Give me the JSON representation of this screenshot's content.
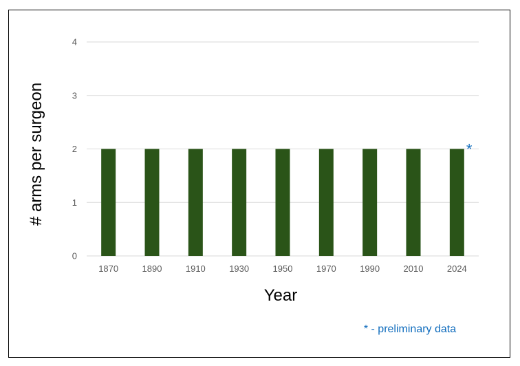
{
  "chart_data": {
    "type": "bar",
    "title": "",
    "xlabel": "Year",
    "ylabel": "# arms per surgeon",
    "categories": [
      "1870",
      "1890",
      "1910",
      "1930",
      "1950",
      "1970",
      "1990",
      "2010",
      "2024"
    ],
    "values": [
      2,
      2,
      2,
      2,
      2,
      2,
      2,
      2,
      2
    ],
    "ylim": [
      0,
      4
    ],
    "yticks": [
      "0",
      "1",
      "2",
      "3",
      "4"
    ],
    "grid": true,
    "annotations": [
      {
        "text": "*",
        "category": "2024"
      }
    ],
    "footnote": "* - preliminary data",
    "colors": {
      "bar": "#2a5418",
      "grid": "#d9d9d9",
      "annotation": "#0f6cbd"
    }
  }
}
